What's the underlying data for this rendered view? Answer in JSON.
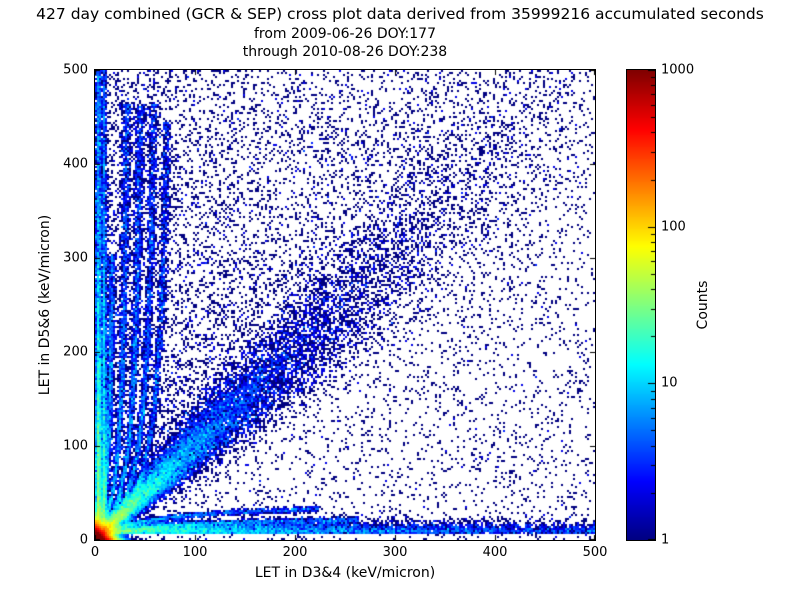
{
  "title": {
    "line1": "427 day combined (GCR & SEP) cross plot data derived from 35999216 accumulated seconds",
    "line2": "from 2009-06-26 DOY:177",
    "line3": "through 2010-08-26 DOY:238"
  },
  "chart_data": {
    "type": "heatmap",
    "subtype": "2d-histogram-cross-plot",
    "xlabel": "LET in D3&4 (keV/micron)",
    "ylabel": "LET in D5&6 (keV/micron)",
    "xlim": [
      0,
      500
    ],
    "ylim": [
      0,
      500
    ],
    "xticks": [
      0,
      100,
      200,
      300,
      400,
      500
    ],
    "yticks": [
      0,
      100,
      200,
      300,
      400,
      500
    ],
    "grid": false,
    "colorbar": {
      "label": "Counts",
      "scale": "log",
      "min": 1,
      "max": 1000,
      "ticks": [
        1,
        10,
        100,
        1000
      ],
      "colormap": "jet"
    },
    "features": [
      {
        "name": "origin-hotspot",
        "type": "blob",
        "x": 0,
        "y": 0,
        "scale": 4.5,
        "n": 40000
      },
      {
        "name": "main-diagonal-correlation-band",
        "type": "diagonal",
        "scale": 110,
        "sigma0": 2,
        "sigmak": 0.1,
        "n": 18000
      },
      {
        "name": "bottom-horizontal-band",
        "type": "hband",
        "y": 7,
        "spread": 6,
        "xscale": 130,
        "n": 9000
      },
      {
        "name": "left-vertical-band",
        "type": "vband",
        "x": 1.5,
        "spread": 3.5,
        "yscale": 130,
        "n": 9000
      },
      {
        "name": "near-axis-vertical-streak",
        "type": "vband",
        "x": 8,
        "spread": 2,
        "yscale": 200,
        "n": 3000
      },
      {
        "name": "ion-track-streak",
        "type": "track-v",
        "x0": 20,
        "c": 50,
        "ymax": 300,
        "n": 2000
      },
      {
        "name": "ion-track-streak",
        "type": "track-v",
        "x0": 35,
        "c": 50,
        "ymax": 460,
        "n": 2500
      },
      {
        "name": "ion-track-streak",
        "type": "track-v",
        "x0": 50,
        "c": 50,
        "ymax": 460,
        "n": 2500
      },
      {
        "name": "ion-track-streak",
        "type": "track-v",
        "x0": 65,
        "c": 50,
        "ymax": 460,
        "n": 2200
      },
      {
        "name": "ion-track-streak",
        "type": "track-v",
        "x0": 80,
        "c": 50,
        "ymax": 440,
        "n": 1800
      },
      {
        "name": "ion-track-streak-below-diagonal",
        "type": "track-h",
        "y0": 25,
        "c": 50,
        "xmax": 260,
        "n": 1500
      },
      {
        "name": "ion-track-streak-below-diagonal",
        "type": "track-h",
        "y0": 40,
        "c": 50,
        "xmax": 220,
        "n": 1200
      },
      {
        "name": "above-diagonal-fill",
        "type": "triangle",
        "n": 4000
      },
      {
        "name": "sparse-background",
        "type": "background",
        "n_left": 4000,
        "n_uniform": 3000
      }
    ]
  }
}
